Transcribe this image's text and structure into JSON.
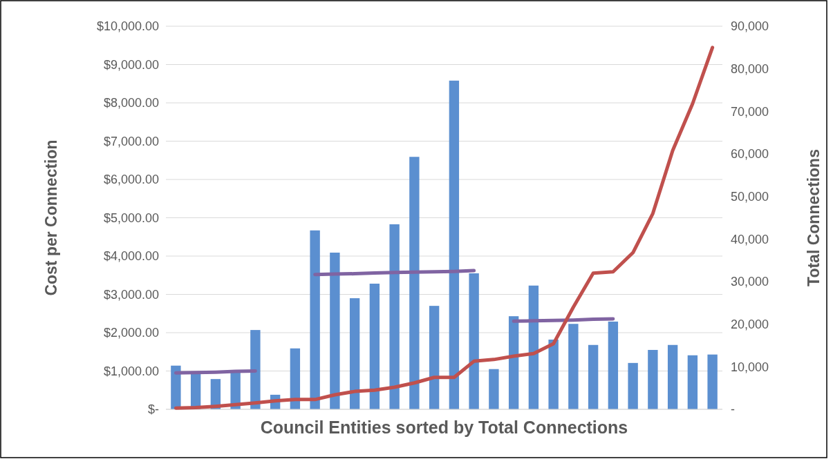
{
  "chart_data": {
    "type": "bar",
    "xlabel": "Council Entities sorted by Total Connections",
    "ylabel": "Cost per Connection",
    "y2label": "Total Connections",
    "categories": [
      null,
      null,
      null,
      null,
      null,
      null,
      null,
      null,
      null,
      null,
      null,
      null,
      null,
      null,
      null,
      null,
      null,
      null,
      null,
      null,
      null,
      null,
      null,
      null,
      null,
      null,
      null,
      null
    ],
    "series": [
      {
        "color": "#5b8fd0",
        "values": [
          1140,
          940,
          790,
          970,
          2070,
          380,
          1590,
          4670,
          4090,
          2900,
          3280,
          4830,
          6590,
          2700,
          8580,
          3550,
          1050,
          2430,
          3230,
          1820,
          2230,
          1680,
          2290,
          1210,
          1550,
          1680,
          1410,
          1430
        ]
      },
      {
        "type": "line",
        "color": "#8064a2",
        "values": [
          950,
          960,
          970,
          990,
          1000,
          null,
          null,
          null,
          null,
          null,
          null,
          null,
          null,
          null,
          null,
          null,
          null,
          null,
          null,
          null,
          null,
          null,
          null,
          null,
          null,
          null,
          null,
          null
        ]
      },
      {
        "type": "line",
        "color": "#8064a2",
        "values": [
          null,
          null,
          null,
          null,
          null,
          null,
          null,
          3520,
          3530,
          3540,
          3560,
          3570,
          3580,
          3590,
          3600,
          3620,
          null,
          null,
          null,
          null,
          null,
          null,
          null,
          null,
          null,
          null,
          null,
          null
        ]
      },
      {
        "type": "line",
        "color": "#8064a2",
        "values": [
          null,
          null,
          null,
          null,
          null,
          null,
          null,
          null,
          null,
          null,
          null,
          null,
          null,
          null,
          null,
          null,
          null,
          2300,
          2310,
          2320,
          2330,
          2350,
          2360,
          null,
          null,
          null,
          null,
          null
        ]
      },
      {
        "type": "line",
        "axis": "y2",
        "color": "#c0504d",
        "values": [
          300,
          400,
          700,
          1100,
          1500,
          2000,
          2300,
          2300,
          3400,
          4200,
          4500,
          5200,
          6200,
          7500,
          7500,
          11300,
          11700,
          12500,
          13100,
          15400,
          24000,
          32000,
          32300,
          36800,
          46000,
          60800,
          71800,
          85000
        ]
      }
    ],
    "ylim": [
      0,
      10000
    ],
    "yticks": [
      {
        "value": 0,
        "label": "$-"
      },
      {
        "value": 1000,
        "label": "$1,000.00"
      },
      {
        "value": 2000,
        "label": "$2,000.00"
      },
      {
        "value": 3000,
        "label": "$3,000.00"
      },
      {
        "value": 4000,
        "label": "$4,000.00"
      },
      {
        "value": 5000,
        "label": "$5,000.00"
      },
      {
        "value": 6000,
        "label": "$6,000.00"
      },
      {
        "value": 7000,
        "label": "$7,000.00"
      },
      {
        "value": 8000,
        "label": "$8,000.00"
      },
      {
        "value": 9000,
        "label": "$9,000.00"
      },
      {
        "value": 10000,
        "label": "$10,000.00"
      }
    ],
    "y2lim": [
      0,
      90000
    ],
    "y2ticks": [
      {
        "value": 0,
        "label": "-"
      },
      {
        "value": 10000,
        "label": "10,000"
      },
      {
        "value": 20000,
        "label": "20,000"
      },
      {
        "value": 30000,
        "label": "30,000"
      },
      {
        "value": 40000,
        "label": "40,000"
      },
      {
        "value": 50000,
        "label": "50,000"
      },
      {
        "value": 60000,
        "label": "60,000"
      },
      {
        "value": 70000,
        "label": "70,000"
      },
      {
        "value": 80000,
        "label": "80,000"
      },
      {
        "value": 90000,
        "label": "90,000"
      }
    ],
    "grid": "y",
    "marker": "none",
    "line_style": "solid"
  }
}
